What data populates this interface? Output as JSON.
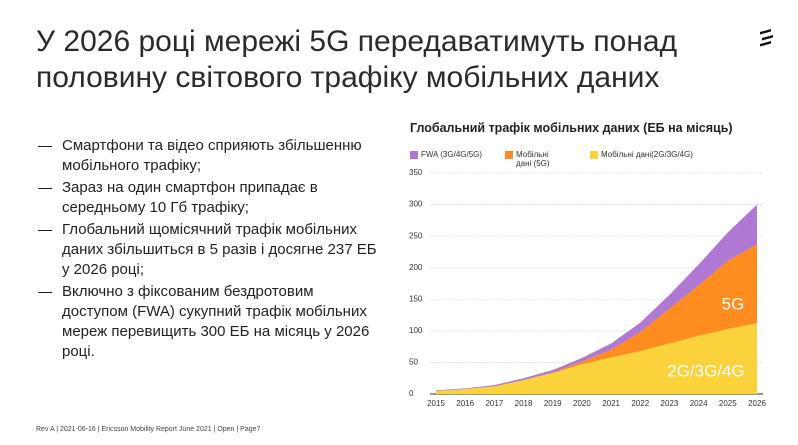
{
  "title": [
    "У 2026 році мережі 5G передаватимуть понад",
    "половину світового трафіку мобільних даних"
  ],
  "bullets": [
    "Смартфони та відео сприяють збільшенню мобільного трафіку;",
    "Зараз на один смартфон припадає в середньому 10 Гб трафіку;",
    "Глобальний щомісячний трафік мобільних даних збільшиться в 5 разів і досягне 237 ЕБ у 2026 році;",
    "Включно з фіксованим бездротовим доступом (FWA) сукупний трафік мобільних мереж перевищить 300 ЕБ на місяць у 2026 році."
  ],
  "footer": "Rev A  |  2021-06-16  |  Ericsson Mobility Report June 2021  |  Open  |  Page7",
  "chart_data": {
    "type": "stacked_area",
    "title": "Глобальний трафік мобільних даних (ЕБ на місяць)",
    "categories": [
      "2015",
      "2016",
      "2017",
      "2018",
      "2019",
      "2020",
      "2021",
      "2022",
      "2023",
      "2024",
      "2025",
      "2026"
    ],
    "series": [
      {
        "name": "Мобільні дані(2G/3G/4G)",
        "color": "#fad23c",
        "values": [
          5,
          8,
          12,
          22,
          33,
          47,
          58,
          68,
          80,
          92,
          103,
          112
        ]
      },
      {
        "name": "Мобільні дані (5G)",
        "color": "#ff8c1e",
        "values": [
          0,
          0,
          0,
          0,
          1,
          4,
          12,
          30,
          55,
          80,
          108,
          125
        ]
      },
      {
        "name": "FWA (3G/4G/5G)",
        "color": "#af78d2",
        "values": [
          1,
          1,
          2,
          3,
          4,
          6,
          10,
          15,
          22,
          33,
          45,
          63
        ]
      }
    ],
    "annotations": [
      "5G",
      "2G/3G/4G"
    ],
    "ylim": [
      0,
      350
    ],
    "yticks": [
      0,
      50,
      100,
      150,
      200,
      250,
      300,
      350
    ],
    "grid": true
  }
}
